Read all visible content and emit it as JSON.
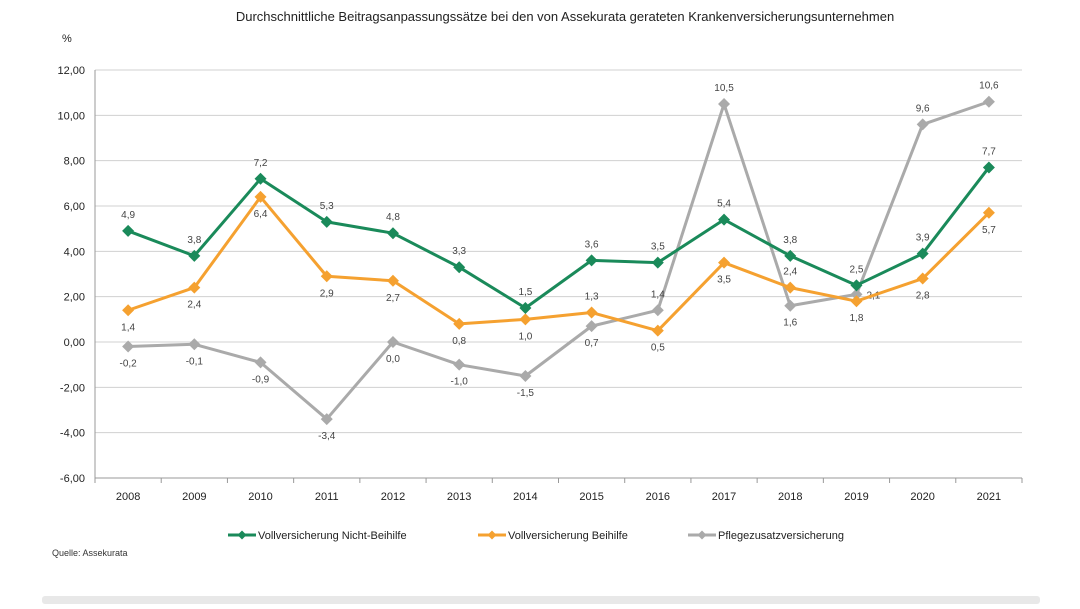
{
  "chart_data": {
    "type": "line",
    "title": "Durchschnittliche Beitragsanpassungssätze bei den von Assekurata gerateten Krankenversicherungsunternehmen",
    "ylabel": "%",
    "xlabel": "",
    "ylim": [
      -6,
      12
    ],
    "yticks": [
      12,
      10,
      8,
      6,
      4,
      2,
      0,
      -2,
      -4,
      -6
    ],
    "ytick_labels": [
      "12,00",
      "10,00",
      "8,00",
      "6,00",
      "4,00",
      "2,00",
      "0,00",
      "-2,00",
      "-4,00",
      "-6,00"
    ],
    "grid": true,
    "legend_position": "bottom",
    "categories": [
      "2008",
      "2009",
      "2010",
      "2011",
      "2012",
      "2013",
      "2014",
      "2015",
      "2016",
      "2017",
      "2018",
      "2019",
      "2020",
      "2021"
    ],
    "series": [
      {
        "name": "Vollversicherung Nicht-Beihilfe",
        "color": "#1a8a5a",
        "values": [
          4.9,
          3.8,
          7.2,
          5.3,
          4.8,
          3.3,
          1.5,
          3.6,
          3.5,
          5.4,
          3.8,
          2.5,
          3.9,
          7.7
        ],
        "label_side": [
          "above",
          "above",
          "above",
          "above",
          "above",
          "above",
          "above",
          "above",
          "above",
          "above",
          "above",
          "above",
          "above",
          "above"
        ]
      },
      {
        "name": "Vollversicherung Beihilfe",
        "color": "#f5a130",
        "values": [
          1.4,
          2.4,
          6.4,
          2.9,
          2.7,
          0.8,
          1.0,
          1.3,
          0.5,
          3.5,
          2.4,
          1.8,
          2.8,
          5.7
        ],
        "label_side": [
          "below",
          "below",
          "below",
          "below",
          "below",
          "below",
          "below",
          "above",
          "below",
          "below",
          "above",
          "below",
          "below",
          "below"
        ]
      },
      {
        "name": "Pflegezusatzversicherung",
        "color": "#aaaaaa",
        "values": [
          -0.2,
          -0.1,
          -0.9,
          -3.4,
          0.0,
          -1.0,
          -1.5,
          0.7,
          1.4,
          10.5,
          1.6,
          2.1,
          9.6,
          10.6
        ],
        "label_side": [
          "below",
          "below",
          "below",
          "below",
          "below",
          "below",
          "below",
          "below",
          "above",
          "above",
          "below",
          "right",
          "above",
          "above"
        ]
      }
    ],
    "source": "Quelle: Assekurata"
  }
}
